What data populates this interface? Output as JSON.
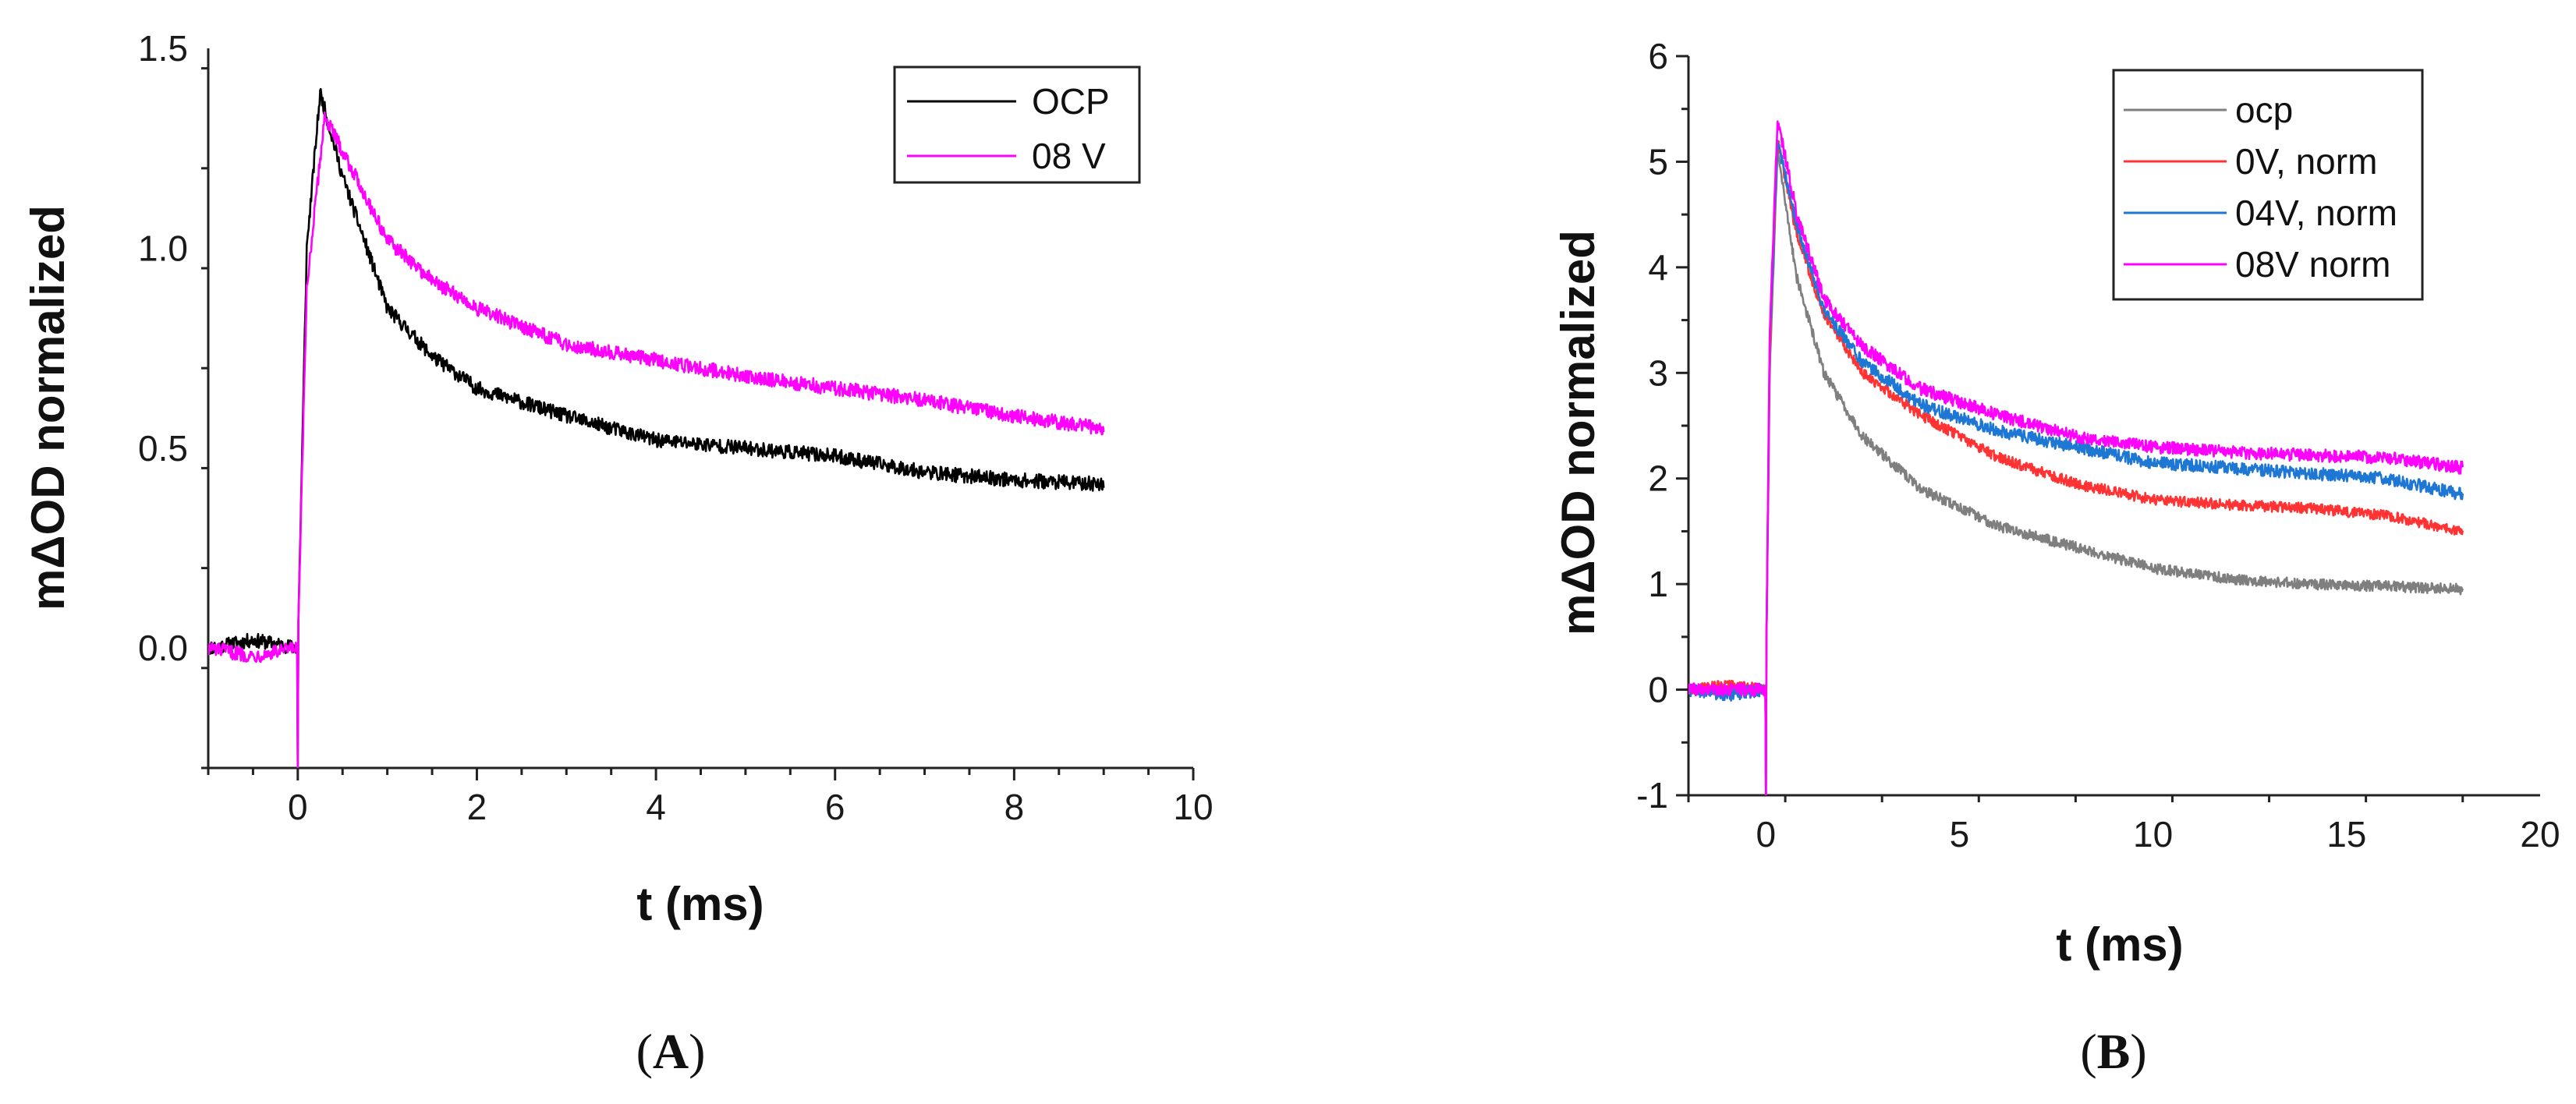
{
  "chart_data": [
    {
      "type": "line",
      "panel": "A",
      "xlabel": "t (ms)",
      "ylabel": "mΔOD normalized",
      "xlim": [
        -1,
        10
      ],
      "ylim": [
        -0.3,
        1.5
      ],
      "xticks": [
        0,
        2,
        4,
        6,
        8,
        10
      ],
      "xtick_labels": [
        "0",
        "2",
        "4",
        "6",
        "8",
        "10"
      ],
      "yticks": [
        0.0,
        0.5,
        1.0,
        1.5
      ],
      "ytick_labels": [
        "0.0",
        "0.5",
        "1.0",
        "1.5"
      ],
      "x_minor_step": 0.5,
      "y_minor_step": 0.25,
      "legend_position": "top-right",
      "series": [
        {
          "name": "OCP",
          "color": "#000000",
          "noise": 0.018,
          "x": [
            -1,
            -0.5,
            0,
            0.1,
            0.25,
            0.5,
            1,
            1.5,
            2,
            3,
            4,
            5,
            6,
            7,
            8,
            9
          ],
          "y": [
            0.0,
            0.02,
            0.0,
            1.0,
            1.39,
            1.18,
            0.85,
            0.73,
            0.65,
            0.58,
            0.52,
            0.5,
            0.48,
            0.44,
            0.42,
            0.41
          ]
        },
        {
          "name": "08 V",
          "color": "#ff00ff",
          "noise": 0.018,
          "x": [
            -1,
            -0.5,
            0,
            0.1,
            0.3,
            0.6,
            1,
            1.5,
            2,
            3,
            4,
            5,
            6,
            7,
            8,
            9
          ],
          "y": [
            0.0,
            -0.02,
            0.0,
            0.9,
            1.33,
            1.2,
            1.02,
            0.92,
            0.85,
            0.76,
            0.72,
            0.68,
            0.65,
            0.62,
            0.58,
            0.55
          ]
        }
      ]
    },
    {
      "type": "line",
      "panel": "B",
      "xlabel": "t (ms)",
      "ylabel": "mΔOD normalized",
      "xlim": [
        -2,
        20
      ],
      "ylim": [
        -1,
        6
      ],
      "xticks": [
        0,
        5,
        10,
        15,
        20
      ],
      "xtick_labels": [
        "0",
        "5",
        "10",
        "15",
        "20"
      ],
      "yticks": [
        -1,
        0,
        1,
        2,
        3,
        4,
        5,
        6
      ],
      "ytick_labels": [
        "-1",
        "0",
        "1",
        "2",
        "3",
        "4",
        "5",
        "6"
      ],
      "x_minor_step": 2.5,
      "y_minor_step": 0.5,
      "legend_position": "top-right",
      "series": [
        {
          "name": "ocp",
          "color": "#7f7f7f",
          "noise": 0.05,
          "x": [
            -2,
            -1,
            0,
            0.1,
            0.3,
            0.8,
            1.5,
            2.5,
            4,
            6,
            8,
            10,
            12,
            14,
            16,
            18
          ],
          "y": [
            0.0,
            0.0,
            0.0,
            3.0,
            5.1,
            3.9,
            3.0,
            2.4,
            1.9,
            1.55,
            1.35,
            1.15,
            1.05,
            1.0,
            0.98,
            0.95
          ]
        },
        {
          "name": "0V, norm",
          "color": "#ff3333",
          "noise": 0.05,
          "x": [
            -2,
            -1,
            0,
            0.1,
            0.3,
            0.8,
            1.5,
            2.5,
            4,
            6,
            8,
            10,
            12,
            14,
            16,
            18
          ],
          "y": [
            0.0,
            0.05,
            0.0,
            3.2,
            5.2,
            4.3,
            3.55,
            3.0,
            2.6,
            2.2,
            1.95,
            1.8,
            1.75,
            1.72,
            1.65,
            1.5
          ]
        },
        {
          "name": "04V, norm",
          "color": "#1f77d4",
          "noise": 0.06,
          "x": [
            -2,
            -1,
            0,
            0.1,
            0.3,
            0.8,
            1.5,
            2.5,
            4,
            6,
            8,
            10,
            12,
            14,
            16,
            18
          ],
          "y": [
            0.0,
            -0.05,
            0.0,
            3.3,
            5.2,
            4.4,
            3.6,
            3.1,
            2.7,
            2.45,
            2.3,
            2.15,
            2.1,
            2.05,
            2.0,
            1.85
          ]
        },
        {
          "name": "08V norm",
          "color": "#ff00ff",
          "noise": 0.06,
          "x": [
            -2,
            -1,
            0,
            0.1,
            0.3,
            0.8,
            1.5,
            2.5,
            4,
            6,
            8,
            10,
            12,
            14,
            16,
            18
          ],
          "y": [
            0.0,
            0.0,
            0.0,
            3.4,
            5.4,
            4.5,
            3.7,
            3.25,
            2.85,
            2.6,
            2.4,
            2.3,
            2.25,
            2.22,
            2.2,
            2.1
          ]
        }
      ]
    }
  ],
  "captions": {
    "a": {
      "open": "(",
      "letter": "A",
      "close": ")"
    },
    "b": {
      "open": "(",
      "letter": "B",
      "close": ")"
    }
  }
}
